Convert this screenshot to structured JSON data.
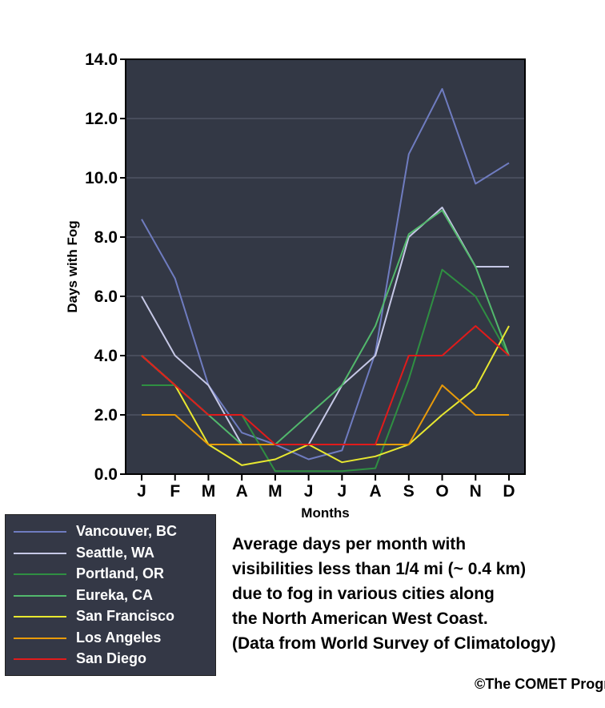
{
  "chart_data": {
    "type": "line",
    "xlabel": "Months",
    "ylabel": "Days with Fog",
    "ylim": [
      0,
      14
    ],
    "yticks": [
      "0.0",
      "2.0",
      "4.0",
      "6.0",
      "8.0",
      "10.0",
      "12.0",
      "14.0"
    ],
    "categories": [
      "J",
      "F",
      "M",
      "A",
      "M",
      "J",
      "J",
      "A",
      "S",
      "O",
      "N",
      "D"
    ],
    "grid": "horizontal",
    "background": "#333845",
    "series": [
      {
        "name": "Vancouver, BC",
        "color": "#6f7cc0",
        "values": [
          8.6,
          6.6,
          3.0,
          1.4,
          1.0,
          0.5,
          0.8,
          4.1,
          10.8,
          13.0,
          9.8,
          10.5
        ]
      },
      {
        "name": "Seattle, WA",
        "color": "#c6c8e6",
        "values": [
          6.0,
          4.0,
          3.0,
          1.0,
          1.0,
          1.0,
          3.0,
          4.0,
          8.0,
          9.0,
          7.0,
          7.0
        ]
      },
      {
        "name": "Portland, OR",
        "color": "#2f8f42",
        "values": [
          3.0,
          3.0,
          2.0,
          2.0,
          0.1,
          0.1,
          0.1,
          0.2,
          3.2,
          6.9,
          6.0,
          4.0
        ]
      },
      {
        "name": "Eureka, CA",
        "color": "#52b86c",
        "values": [
          4.0,
          3.0,
          2.0,
          1.0,
          1.0,
          2.0,
          3.0,
          5.0,
          8.1,
          8.9,
          7.0,
          4.0
        ]
      },
      {
        "name": "San Francisco",
        "color": "#e8e830",
        "values": [
          4.0,
          3.0,
          1.0,
          0.3,
          0.5,
          1.0,
          0.4,
          0.6,
          1.0,
          2.0,
          2.9,
          5.0
        ]
      },
      {
        "name": "Los Angeles",
        "color": "#e89a0a",
        "values": [
          2.0,
          2.0,
          1.0,
          1.0,
          1.0,
          1.0,
          1.0,
          1.0,
          1.0,
          3.0,
          2.0,
          2.0
        ]
      },
      {
        "name": "San Diego",
        "color": "#e01b1b",
        "values": [
          4.0,
          3.0,
          2.0,
          2.0,
          1.0,
          1.0,
          1.0,
          1.0,
          4.0,
          4.0,
          5.0,
          4.0
        ]
      }
    ]
  },
  "description": [
    "Average days per month with",
    "visibilities less than 1/4 mi (~ 0.4 km)",
    "due to fog in various cities along",
    "the North American West Coast.",
    "(Data from World Survey of Climatology)"
  ],
  "copyright": "©The COMET Program"
}
